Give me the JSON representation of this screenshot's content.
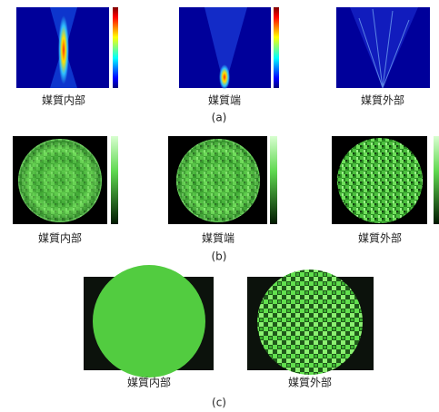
{
  "panels": [
    {
      "label": "(a)",
      "captions": [
        "媒質内部",
        "媒質端",
        "媒質外部"
      ]
    },
    {
      "label": "(b)",
      "captions": [
        "媒質内部",
        "媒質端",
        "媒質外部"
      ]
    },
    {
      "label": "(c)",
      "captions": [
        "媒質内部",
        "媒質外部"
      ]
    }
  ]
}
